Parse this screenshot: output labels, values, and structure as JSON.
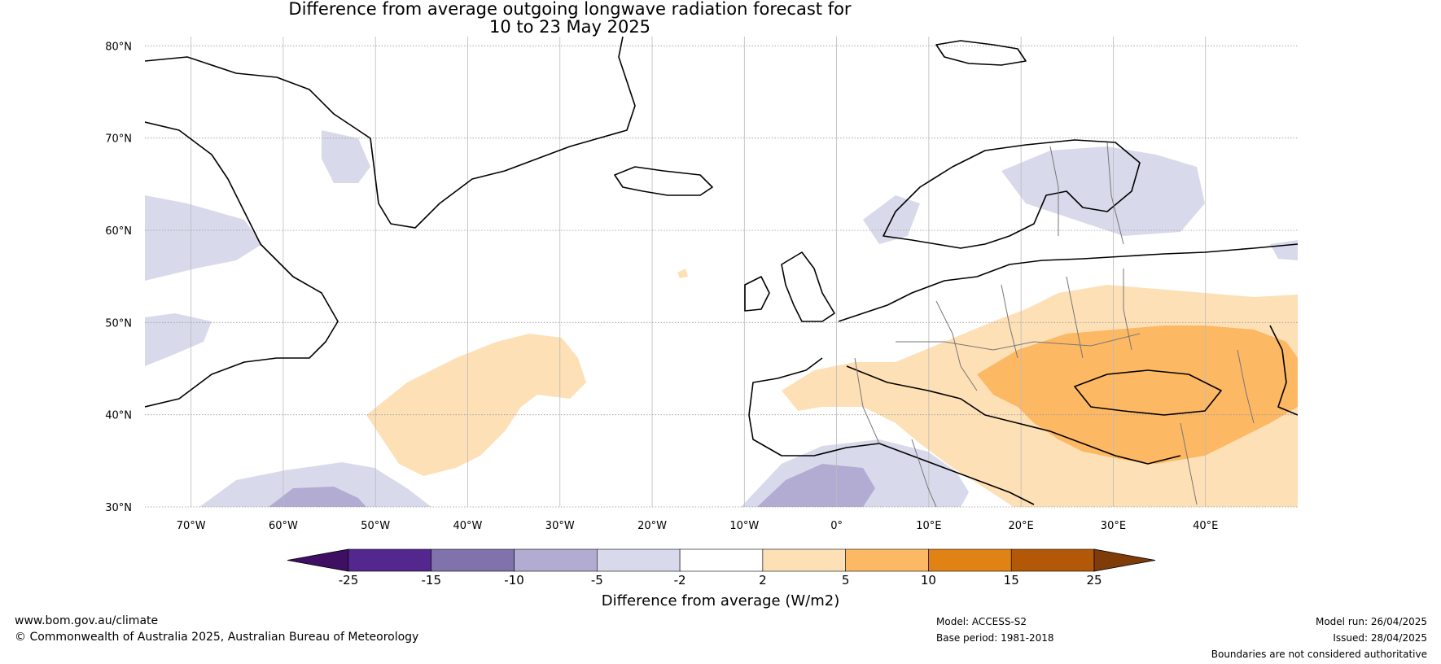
{
  "title": {
    "line1": "Difference from average outgoing longwave radiation forecast for",
    "line2": "10 to 23 May 2025"
  },
  "map": {
    "lat_labels": [
      "80°N",
      "70°N",
      "60°N",
      "50°N",
      "40°N",
      "30°N"
    ],
    "lon_labels": [
      "70°W",
      "60°W",
      "50°W",
      "40°W",
      "30°W",
      "20°W",
      "10°W",
      "0°",
      "10°E",
      "20°E",
      "30°E",
      "40°E"
    ],
    "lat_values": [
      80,
      70,
      60,
      50,
      40,
      30
    ],
    "lon_values": [
      -70,
      -60,
      -50,
      -40,
      -30,
      -20,
      -10,
      0,
      10,
      20,
      30,
      40
    ],
    "extent": {
      "lon_min": -75,
      "lon_max": 50,
      "lat_min": 30,
      "lat_max": 81
    }
  },
  "colorbar": {
    "ticks": [
      "-25",
      "-15",
      "-10",
      "-5",
      "-2",
      "2",
      "5",
      "10",
      "15",
      "25"
    ],
    "colors": [
      "#3f0f63",
      "#54278f",
      "#8073ac",
      "#b2abd2",
      "#d8daeb",
      "#ffffff",
      "#fee0b6",
      "#fdb863",
      "#e08214",
      "#b35806",
      "#7f3b08"
    ],
    "label": "Difference from average (W/m2)"
  },
  "footer": {
    "website": "www.bom.gov.au/climate",
    "copyright": "© Commonwealth of Australia 2025, Australian Bureau of Meteorology",
    "model": "Model: ACCESS-S2",
    "base_period": "Base period: 1981-2018",
    "model_run": "Model run: 26/04/2025",
    "issued": "Issued: 28/04/2025",
    "disclaimer": "Boundaries are not considered authoritative"
  }
}
